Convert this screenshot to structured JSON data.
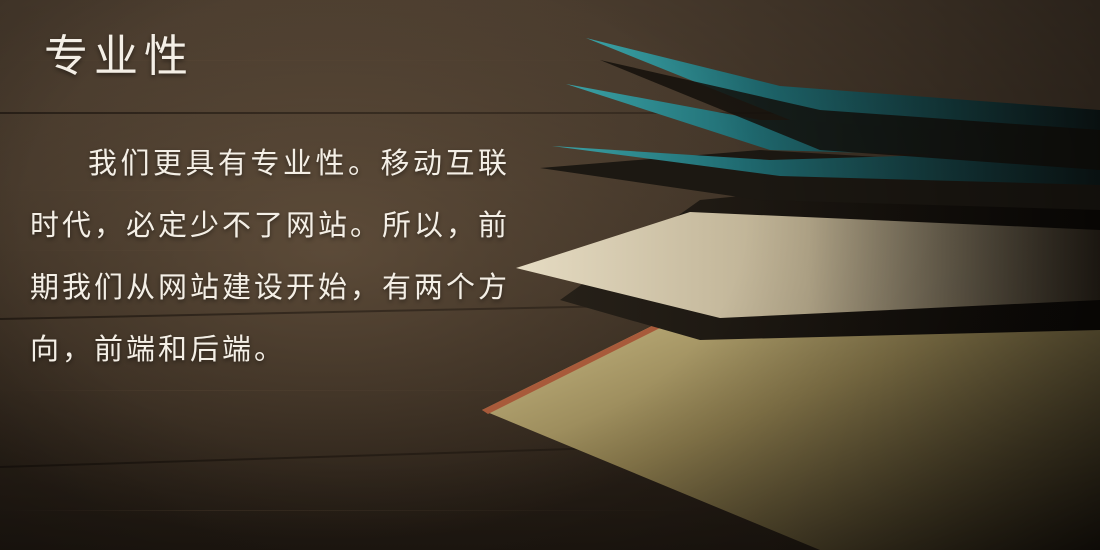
{
  "title": "专业性",
  "paragraph": "我们更具有专业性。移动互联时代，必定少不了网站。所以，前期我们从网站建设开始，有两个方向，前端和后端。",
  "colors": {
    "text": "#f4efe6",
    "wood_light": "#4a3c2e",
    "wood_dark": "#1f1811",
    "page_cream": "#d9cfae",
    "page_teal": "#2f8f95",
    "book_edge": "#a85a3a"
  }
}
